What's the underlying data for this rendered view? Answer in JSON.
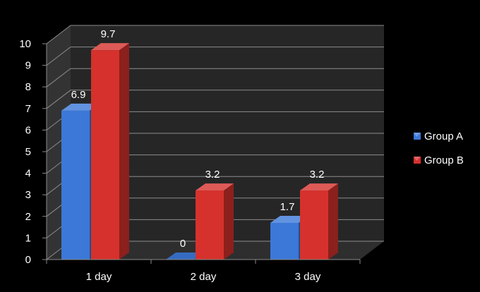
{
  "chart_data": {
    "type": "bar",
    "categories": [
      "1 day",
      "2 day",
      "3 day"
    ],
    "series": [
      {
        "name": "Group A",
        "values": [
          6.9,
          0,
          1.7
        ]
      },
      {
        "name": "Group B",
        "values": [
          9.7,
          3.2,
          3.2
        ]
      }
    ],
    "data_labels": [
      [
        "6.9",
        "0",
        "1.7"
      ],
      [
        "9.7",
        "3.2",
        "3.2"
      ]
    ],
    "y_ticks": [
      "0",
      "1",
      "2",
      "3",
      "4",
      "5",
      "6",
      "7",
      "8",
      "9",
      "10"
    ],
    "ylim": [
      0,
      10
    ],
    "title": "",
    "xlabel": "",
    "ylabel": "",
    "grid": true,
    "legend_position": "right",
    "style": "3d-clustered-column"
  },
  "colors": {
    "background": "#000000",
    "wall": "#262626",
    "wall_side": "#333333",
    "floor": "#2e2e2e",
    "gridline": "#8c8c8c",
    "group_a": "#3b78d8",
    "group_b": "#d6312c",
    "text": "#ffffff"
  }
}
